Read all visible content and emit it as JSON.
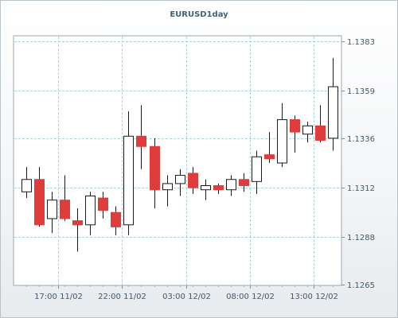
{
  "chart_data": {
    "type": "candlestick",
    "title": "EURUSD1day",
    "y_ticks": [
      1.1265,
      1.1288,
      1.1312,
      1.1336,
      1.1359,
      1.1383
    ],
    "ylim": [
      1.1265,
      1.1383
    ],
    "x_ticks": [
      {
        "label": "17:00 11/02",
        "index": 2.5
      },
      {
        "label": "22:00 11/02",
        "index": 7.5
      },
      {
        "label": "03:00 12/02",
        "index": 12.5
      },
      {
        "label": "08:00 12/02",
        "index": 17.5
      },
      {
        "label": "13:00 12/02",
        "index": 22.5
      }
    ],
    "grid": true,
    "up_color": "#ffffff",
    "down_color": "#e03c3c",
    "candles": [
      {
        "o": 1.131,
        "h": 1.1322,
        "l": 1.1307,
        "c": 1.1316
      },
      {
        "o": 1.1316,
        "h": 1.1322,
        "l": 1.1293,
        "c": 1.1294
      },
      {
        "o": 1.1297,
        "h": 1.131,
        "l": 1.129,
        "c": 1.1306
      },
      {
        "o": 1.1306,
        "h": 1.1318,
        "l": 1.1296,
        "c": 1.1297
      },
      {
        "o": 1.1296,
        "h": 1.1302,
        "l": 1.1281,
        "c": 1.1294
      },
      {
        "o": 1.1294,
        "h": 1.131,
        "l": 1.1289,
        "c": 1.1308
      },
      {
        "o": 1.1307,
        "h": 1.131,
        "l": 1.1297,
        "c": 1.1301
      },
      {
        "o": 1.13,
        "h": 1.1303,
        "l": 1.1289,
        "c": 1.1293
      },
      {
        "o": 1.1294,
        "h": 1.1349,
        "l": 1.1289,
        "c": 1.1337
      },
      {
        "o": 1.1337,
        "h": 1.1352,
        "l": 1.1321,
        "c": 1.1332
      },
      {
        "o": 1.1332,
        "h": 1.1336,
        "l": 1.1302,
        "c": 1.1311
      },
      {
        "o": 1.1311,
        "h": 1.1318,
        "l": 1.1303,
        "c": 1.1314
      },
      {
        "o": 1.1314,
        "h": 1.1321,
        "l": 1.1308,
        "c": 1.1318
      },
      {
        "o": 1.1319,
        "h": 1.1322,
        "l": 1.1309,
        "c": 1.1312
      },
      {
        "o": 1.1311,
        "h": 1.1316,
        "l": 1.1306,
        "c": 1.1313
      },
      {
        "o": 1.1313,
        "h": 1.1314,
        "l": 1.1309,
        "c": 1.1311
      },
      {
        "o": 1.1311,
        "h": 1.1318,
        "l": 1.1308,
        "c": 1.1316
      },
      {
        "o": 1.1316,
        "h": 1.1319,
        "l": 1.131,
        "c": 1.1313
      },
      {
        "o": 1.1315,
        "h": 1.133,
        "l": 1.1309,
        "c": 1.1327
      },
      {
        "o": 1.1328,
        "h": 1.1339,
        "l": 1.1324,
        "c": 1.1326
      },
      {
        "o": 1.1324,
        "h": 1.1353,
        "l": 1.1322,
        "c": 1.1345
      },
      {
        "o": 1.1345,
        "h": 1.1347,
        "l": 1.1329,
        "c": 1.1339
      },
      {
        "o": 1.1338,
        "h": 1.1344,
        "l": 1.1334,
        "c": 1.1342
      },
      {
        "o": 1.1342,
        "h": 1.1352,
        "l": 1.1334,
        "c": 1.1335
      },
      {
        "o": 1.1336,
        "h": 1.1375,
        "l": 1.133,
        "c": 1.1361
      }
    ]
  }
}
